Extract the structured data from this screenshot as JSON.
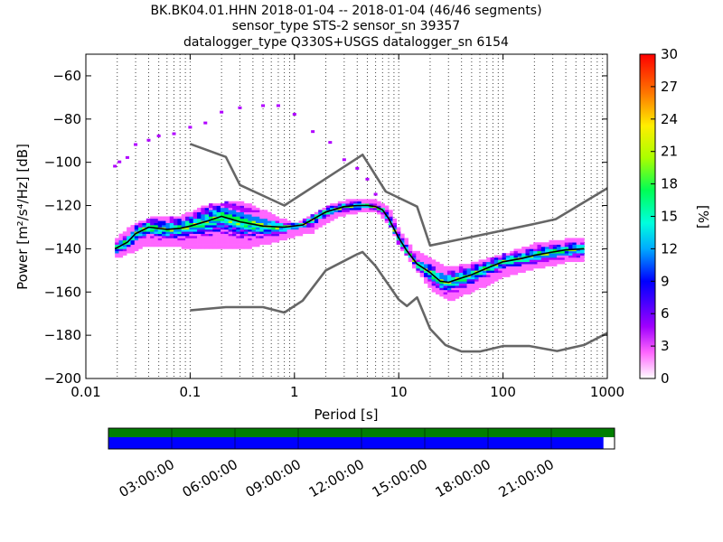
{
  "title_lines": [
    "BK.BK04.01.HHN   2018-01-04 -- 2018-01-04  (46/46 segments)",
    "sensor_type STS-2 sensor_sn 39357",
    "datalogger_type Q330S+USGS datalogger_sn 6154"
  ],
  "chart_data": {
    "type": "heatmap",
    "xlabel": "Period [s]",
    "ylabel": "Power [m²/s⁴/Hz] [dB]",
    "xscale": "log",
    "xlim": [
      0.01,
      1000
    ],
    "ylim": [
      -200,
      -50
    ],
    "x_ticks": [
      {
        "value": 0.01,
        "label": "0.01"
      },
      {
        "value": 0.1,
        "label": "0.1"
      },
      {
        "value": 1,
        "label": "1"
      },
      {
        "value": 10,
        "label": "10"
      },
      {
        "value": 100,
        "label": "100"
      },
      {
        "value": 1000,
        "label": "1000"
      }
    ],
    "y_ticks": [
      {
        "value": -60,
        "label": "−60"
      },
      {
        "value": -80,
        "label": "−80"
      },
      {
        "value": -100,
        "label": "−100"
      },
      {
        "value": -120,
        "label": "−120"
      },
      {
        "value": -140,
        "label": "−140"
      },
      {
        "value": -160,
        "label": "−160"
      },
      {
        "value": -180,
        "label": "−180"
      },
      {
        "value": -200,
        "label": "−200"
      }
    ],
    "grid": "dotted vertical",
    "colorbar": {
      "label": "[%]",
      "range": [
        0,
        30
      ],
      "ticks": [
        "0",
        "3",
        "6",
        "9",
        "12",
        "15",
        "18",
        "21",
        "24",
        "27",
        "30"
      ]
    },
    "series": [
      {
        "name": "",
        "color": "#666666",
        "x": [
          0.1,
          0.22,
          0.3,
          0.8,
          4.5,
          7.5,
          15,
          20,
          200,
          320,
          1000
        ],
        "y": [
          -91.5,
          -97.5,
          -110.5,
          -120,
          -96.5,
          -113.5,
          -120.5,
          -138.5,
          -128.5,
          -126.3,
          -112
        ]
      },
      {
        "name": "",
        "color": "#666666",
        "x": [
          0.1,
          0.22,
          0.5,
          0.8,
          1.2,
          2,
          4,
          4.5,
          6,
          10,
          12,
          15,
          20,
          28,
          40,
          60,
          100,
          180,
          330,
          600,
          1000
        ],
        "y": [
          -168.5,
          -167,
          -167,
          -169.5,
          -164,
          -150,
          -142.5,
          -141.5,
          -148,
          -163.5,
          -166.5,
          -162.5,
          -177,
          -184.5,
          -187.5,
          -187.5,
          -185,
          -185,
          -187.3,
          -184.5,
          -179
        ]
      },
      {
        "name": "",
        "color": "#000000",
        "x": [
          0.019,
          0.025,
          0.03,
          0.04,
          0.06,
          0.08,
          0.1,
          0.15,
          0.2,
          0.3,
          0.5,
          0.8,
          1.2,
          2,
          3,
          4,
          5,
          6,
          7,
          8,
          10,
          12,
          15,
          20,
          25,
          30,
          40,
          50,
          70,
          100,
          150,
          200,
          300,
          400,
          600
        ],
        "y": [
          -140,
          -137,
          -133,
          -130,
          -131,
          -130.5,
          -129.5,
          -127,
          -125,
          -127.5,
          -129.5,
          -130,
          -129,
          -123,
          -120.5,
          -120,
          -120,
          -120.5,
          -122,
          -126,
          -135,
          -141,
          -147,
          -151,
          -155,
          -155.5,
          -153.5,
          -152,
          -149,
          -146,
          -144.5,
          -143,
          -141.5,
          -140.5,
          -140
        ]
      }
    ],
    "heatmap_bands": [
      {
        "x": [
          0.019,
          0.025,
          0.04,
          0.08,
          0.15,
          0.3,
          0.6,
          1,
          1.5,
          2.5,
          4,
          6,
          8,
          10,
          14,
          20,
          30,
          60,
          100,
          200,
          400,
          600
        ],
        "lo": [
          -144,
          -142,
          -138,
          -139,
          -140,
          -140,
          -137,
          -134,
          -132,
          -125,
          -123,
          -122,
          -128,
          -138,
          -148,
          -158,
          -164,
          -158,
          -153,
          -149,
          -146,
          -145
        ],
        "hi": [
          -136,
          -131,
          -126,
          -125,
          -120,
          -118,
          -124,
          -129,
          -124,
          -119,
          -117,
          -118,
          -121,
          -131,
          -141,
          -145,
          -149,
          -146,
          -143,
          -138,
          -136,
          -135
        ]
      }
    ],
    "outlier_points": [
      {
        "x": 0.019,
        "y": -102
      },
      {
        "x": 0.021,
        "y": -100
      },
      {
        "x": 0.025,
        "y": -98
      },
      {
        "x": 0.03,
        "y": -92
      },
      {
        "x": 0.04,
        "y": -90
      },
      {
        "x": 0.05,
        "y": -88
      },
      {
        "x": 0.07,
        "y": -87
      },
      {
        "x": 0.1,
        "y": -84
      },
      {
        "x": 0.14,
        "y": -82
      },
      {
        "x": 0.2,
        "y": -77
      },
      {
        "x": 0.3,
        "y": -75
      },
      {
        "x": 0.5,
        "y": -74
      },
      {
        "x": 0.7,
        "y": -74
      },
      {
        "x": 1,
        "y": -78
      },
      {
        "x": 1.5,
        "y": -86
      },
      {
        "x": 2.2,
        "y": -91
      },
      {
        "x": 3,
        "y": -99
      },
      {
        "x": 4,
        "y": -103
      },
      {
        "x": 5,
        "y": -108
      },
      {
        "x": 6,
        "y": -115
      }
    ]
  },
  "timeline": {
    "time_labels": [
      "03:00:00",
      "06:00:00",
      "09:00:00",
      "12:00:00",
      "15:00:00",
      "18:00:00",
      "21:00:00"
    ],
    "coverage_fraction": 0.978,
    "top_color": "#007f00",
    "bottom_color": "#0000ff"
  },
  "colors": {
    "grid": "#000000",
    "reference_curves": "#666666",
    "mode_curve": "#000000"
  }
}
